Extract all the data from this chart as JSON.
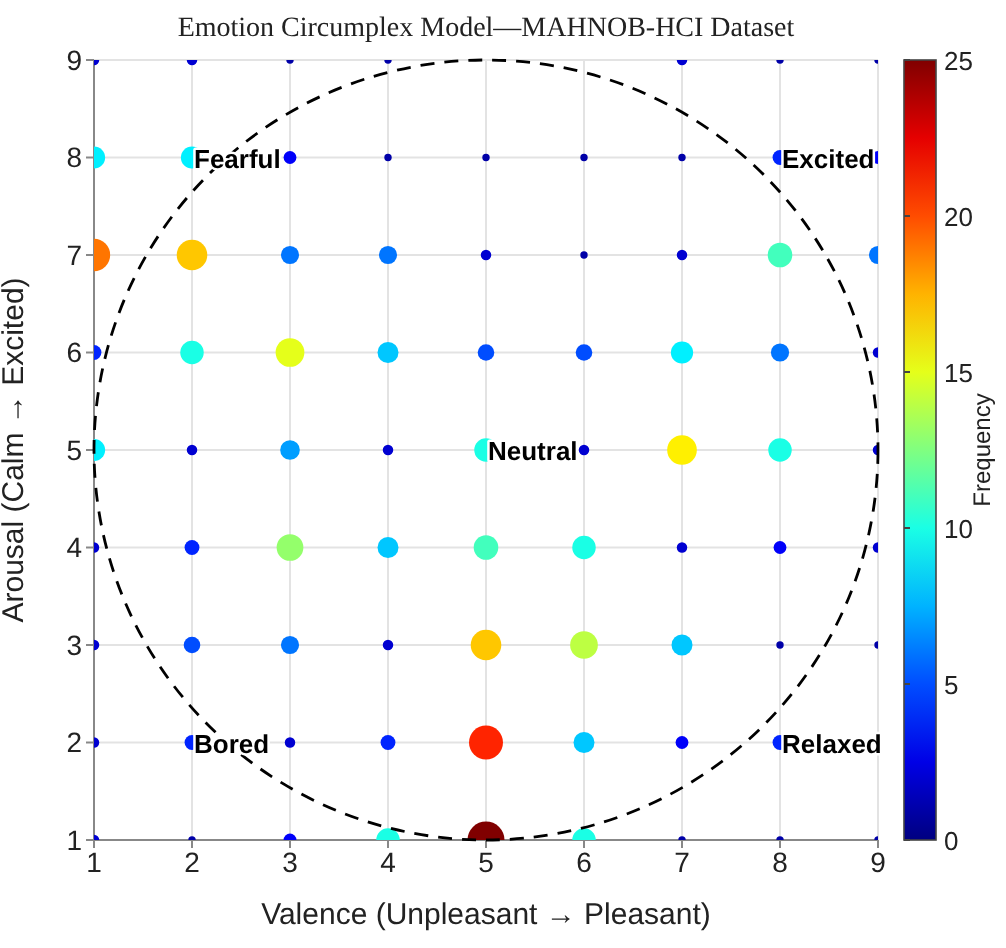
{
  "chart_data": {
    "type": "bubble",
    "title": "Emotion Circumplex Model—MAHNOB-HCI Dataset",
    "xlabel": "Valence (Unpleasant → Pleasant)",
    "ylabel": "Arousal (Calm → Excited)",
    "clabel": "Frequency",
    "clim": [
      0,
      25
    ],
    "cticks": [
      0,
      5,
      10,
      15,
      20,
      25
    ],
    "xlim": [
      1,
      9
    ],
    "ylim": [
      1,
      9
    ],
    "xticks": [
      1,
      2,
      3,
      4,
      5,
      6,
      7,
      8,
      9
    ],
    "yticks": [
      1,
      2,
      3,
      4,
      5,
      6,
      7,
      8,
      9
    ],
    "grid": true,
    "series": [
      {
        "x": [
          1,
          2,
          3,
          4,
          7,
          8,
          9,
          1,
          2,
          3,
          4,
          5,
          6,
          7,
          8,
          9,
          1,
          2,
          3,
          4,
          5,
          6,
          7,
          8,
          9,
          1,
          2,
          3,
          4,
          5,
          6,
          7,
          8,
          9,
          1,
          2,
          3,
          4,
          5,
          6,
          7,
          8,
          9,
          1,
          2,
          3,
          4,
          5,
          6,
          7,
          8,
          9,
          1,
          2,
          3,
          4,
          5,
          6,
          7,
          8,
          9,
          1,
          2,
          3,
          4,
          5,
          6,
          7,
          8,
          1,
          2,
          3,
          4,
          5,
          6,
          7,
          8,
          9
        ],
        "values": [
          9,
          9,
          9,
          9,
          9,
          9,
          9,
          8,
          8,
          8,
          8,
          8,
          8,
          8,
          8,
          8,
          7,
          7,
          7,
          7,
          7,
          7,
          7,
          7,
          7,
          6,
          6,
          6,
          6,
          6,
          6,
          6,
          6,
          6,
          5,
          5,
          5,
          5,
          5,
          5,
          5,
          5,
          5,
          4,
          4,
          4,
          4,
          4,
          4,
          4,
          4,
          4,
          3,
          3,
          3,
          3,
          3,
          3,
          3,
          3,
          3,
          2,
          2,
          2,
          2,
          2,
          2,
          2,
          2,
          1,
          1,
          1,
          1,
          1,
          1,
          1,
          1,
          1
        ],
        "cvalues": [
          2,
          2,
          1,
          1,
          2,
          1,
          1,
          9,
          9,
          3,
          1,
          1,
          1,
          1,
          4,
          3,
          19,
          17,
          6,
          6,
          2,
          1,
          2,
          11,
          6,
          4,
          10,
          15,
          8,
          5,
          5,
          9,
          6,
          2,
          9,
          2,
          7,
          2,
          10,
          2,
          16,
          10,
          2,
          2,
          4,
          13,
          8,
          11,
          10,
          2,
          3,
          2,
          2,
          5,
          6,
          2,
          17,
          14,
          8,
          1,
          1,
          2,
          4,
          2,
          4,
          21,
          8,
          3,
          4,
          2,
          1,
          3,
          10,
          25,
          10,
          1,
          1,
          1
        ],
        "sizes": [
          0.08,
          0.08,
          0.04,
          0.04,
          0.08,
          0.04,
          0.04,
          0.36,
          0.36,
          0.12,
          0.04,
          0.04,
          0.04,
          0.04,
          0.16,
          0.12,
          0.76,
          0.68,
          0.24,
          0.24,
          0.08,
          0.04,
          0.08,
          0.44,
          0.24,
          0.16,
          0.4,
          0.6,
          0.32,
          0.2,
          0.2,
          0.36,
          0.24,
          0.08,
          0.36,
          0.08,
          0.28,
          0.08,
          0.4,
          0.08,
          0.64,
          0.4,
          0.08,
          0.08,
          0.16,
          0.52,
          0.32,
          0.44,
          0.4,
          0.08,
          0.12,
          0.08,
          0.08,
          0.2,
          0.24,
          0.08,
          0.68,
          0.56,
          0.32,
          0.04,
          0.04,
          0.08,
          0.16,
          0.08,
          0.16,
          0.84,
          0.32,
          0.12,
          0.16,
          0.08,
          0.04,
          0.12,
          0.4,
          1,
          0.4,
          0.04,
          0.04,
          0.04
        ]
      }
    ],
    "annotations": [
      {
        "text": "Fearful",
        "x": 2,
        "y": 8
      },
      {
        "text": "Excited",
        "x": 8,
        "y": 8
      },
      {
        "text": "Neutral",
        "x": 5,
        "y": 5
      },
      {
        "text": "Bored",
        "x": 2,
        "y": 2
      },
      {
        "text": "Relaxed",
        "x": 8,
        "y": 2
      }
    ]
  }
}
